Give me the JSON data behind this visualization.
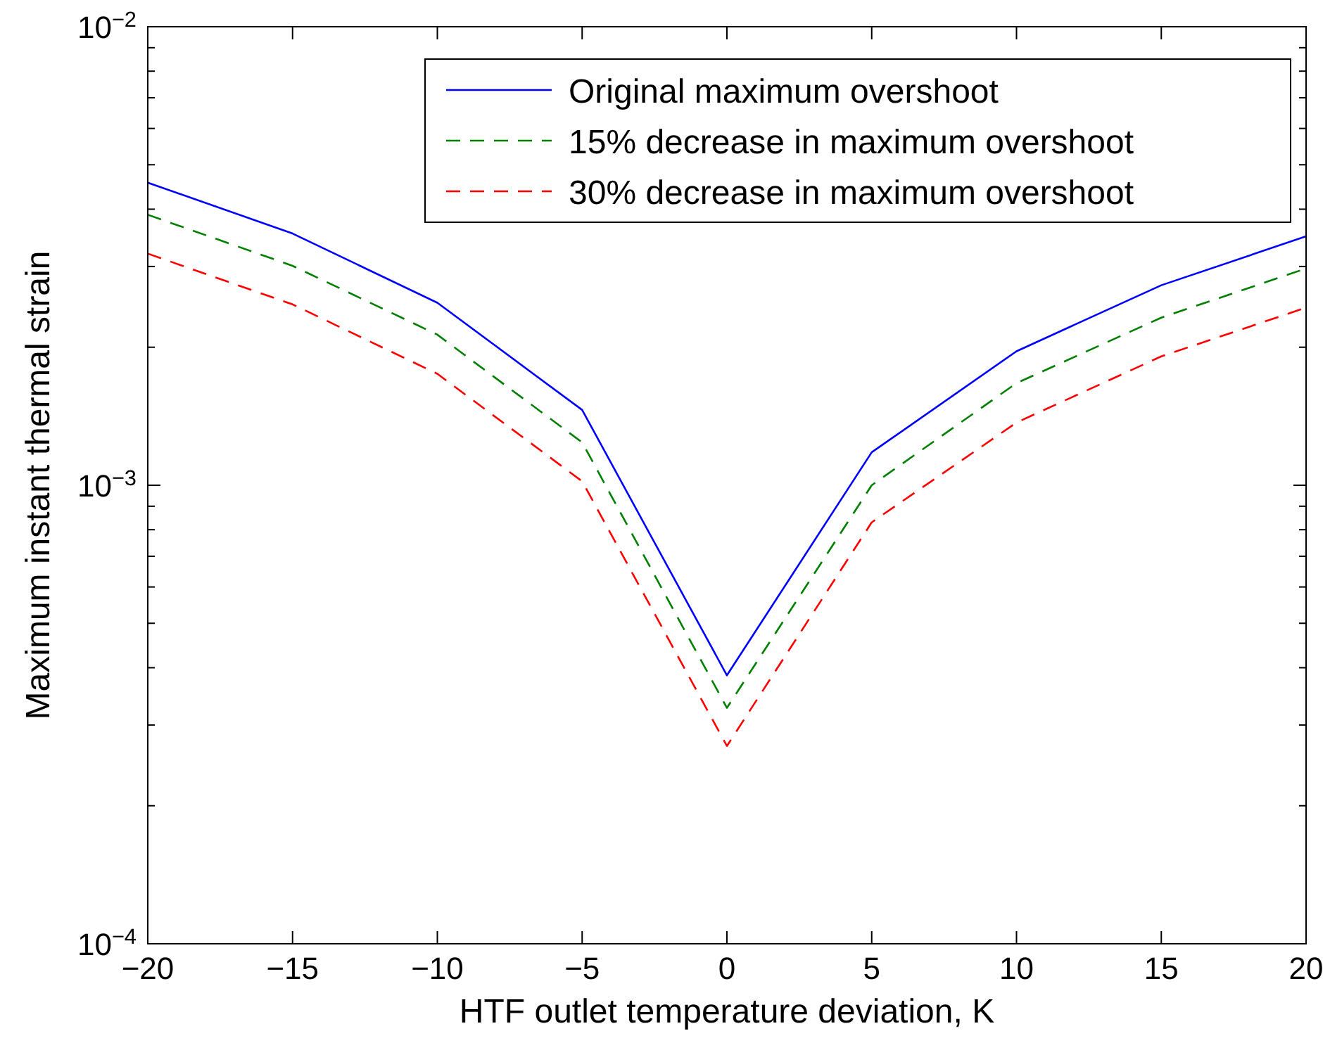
{
  "chart_data": {
    "type": "line",
    "xlabel": "HTF outlet temperature deviation, K",
    "ylabel": "Maximum instant thermal strain",
    "x": [
      -20,
      -15,
      -10,
      -5,
      0,
      5,
      10,
      15,
      20
    ],
    "series": [
      {
        "name": "Original maximum overshoot",
        "color": "#0000ff",
        "line_style": "solid",
        "values": [
          0.00457,
          0.00354,
          0.0025,
          0.00146,
          0.000385,
          0.00118,
          0.00196,
          0.00273,
          0.00349
        ]
      },
      {
        "name": "15% decrease in maximum overshoot",
        "color": "#008000",
        "line_style": "dashed",
        "values": [
          0.00389,
          0.00301,
          0.00213,
          0.00124,
          0.000327,
          0.001,
          0.00167,
          0.00232,
          0.00297
        ]
      },
      {
        "name": "30% decrease in maximum overshoot",
        "color": "#ff0000",
        "line_style": "dashed",
        "values": [
          0.0032,
          0.00248,
          0.00175,
          0.00102,
          0.00027,
          0.00083,
          0.00137,
          0.00191,
          0.00244
        ]
      }
    ],
    "log": "y",
    "grid": false,
    "legend": "top right",
    "marker": "none",
    "xlim": [
      -20,
      20
    ],
    "xticks": [
      {
        "value": -20,
        "label": "−20"
      },
      {
        "value": -15,
        "label": "−15"
      },
      {
        "value": -10,
        "label": "−10"
      },
      {
        "value": -5,
        "label": "−5"
      },
      0,
      5,
      10,
      15,
      20
    ],
    "ylim": [
      0.0001,
      0.01
    ],
    "yticks": [
      {
        "value": 0.0001,
        "label": "10$^{−4}$"
      },
      {
        "value": 0.0002,
        "label": null
      },
      {
        "value": 0.0003,
        "label": null
      },
      {
        "value": 0.0004,
        "label": null
      },
      {
        "value": 0.0005,
        "label": null
      },
      {
        "value": 0.0006,
        "label": null
      },
      {
        "value": 0.0007,
        "label": null
      },
      {
        "value": 0.0008,
        "label": null
      },
      {
        "value": 0.0009,
        "label": null
      },
      {
        "value": 0.001,
        "label": "10$^{−3}$"
      },
      {
        "value": 0.002,
        "label": null
      },
      {
        "value": 0.003,
        "label": null
      },
      {
        "value": 0.004,
        "label": null
      },
      {
        "value": 0.005,
        "label": null
      },
      {
        "value": 0.006,
        "label": null
      },
      {
        "value": 0.007,
        "label": null
      },
      {
        "value": 0.008,
        "label": null
      },
      {
        "value": 0.009,
        "label": null
      },
      {
        "value": 0.01,
        "label": "10$^{−2}$"
      }
    ]
  }
}
